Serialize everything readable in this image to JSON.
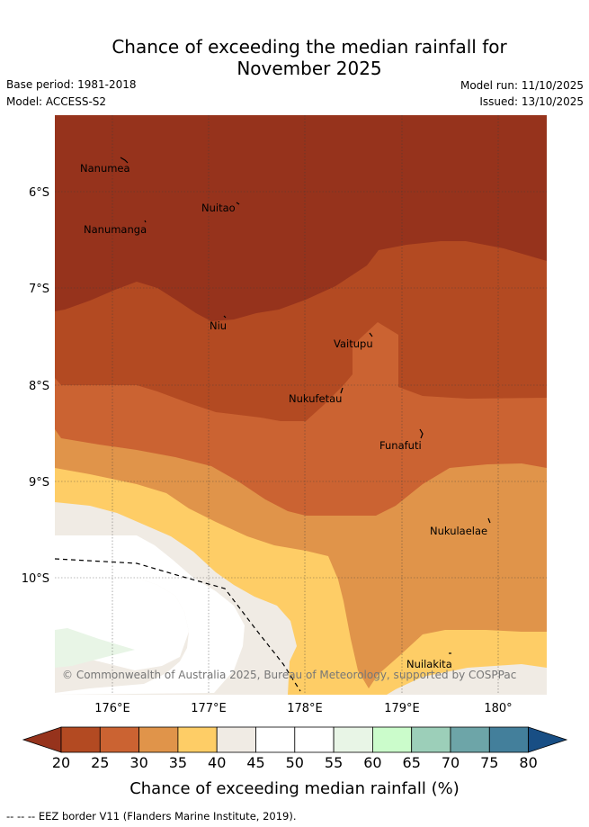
{
  "header": {
    "title_line1": "Chance of exceeding the median rainfall for",
    "title_line2": "November 2025",
    "base_period": "Base period: 1981-2018",
    "model": "Model: ACCESS-S2",
    "model_run": "Model run: 11/10/2025",
    "issued": "Issued: 13/10/2025"
  },
  "map": {
    "lat_labels": [
      "6°S",
      "7°S",
      "8°S",
      "9°S",
      "10°S"
    ],
    "lon_labels": [
      "176°E",
      "177°E",
      "178°E",
      "179°E",
      "180°"
    ],
    "places": [
      "Nanumea",
      "Nuitao",
      "Nanumanga",
      "Niu",
      "Vaitupu",
      "Nukufetau",
      "Funafuti",
      "Nukulaelae",
      "Nuilakita"
    ],
    "copyright": "© Commonwealth of Australia 2025, Bureau of Meteorology, supported by COSPPac",
    "colors": {
      "c20_25": "#b34a22",
      "c25_30": "#cb6332",
      "c30_35": "#e0944a",
      "c35_40": "#fecd66",
      "c40_45": "#f0ebe4",
      "c45_55": "#ffffff",
      "c55_60": "#e8f5e6",
      "c60_65": "#cbfccb",
      "c65_70": "#9ccfb9",
      "c70_75": "#6da5a8",
      "c75_80": "#437f9b",
      "over80": "#184e84",
      "under20": "#96331c"
    }
  },
  "colorbar": {
    "ticks": [
      "20",
      "25",
      "30",
      "35",
      "40",
      "45",
      "50",
      "55",
      "60",
      "65",
      "70",
      "75",
      "80"
    ],
    "label": "Chance of exceeding median rainfall (%)"
  },
  "footer": {
    "legend_symbol": "-- -- --",
    "eez_note": "EEZ border V11 (Flanders Marine Institute, 2019)."
  }
}
